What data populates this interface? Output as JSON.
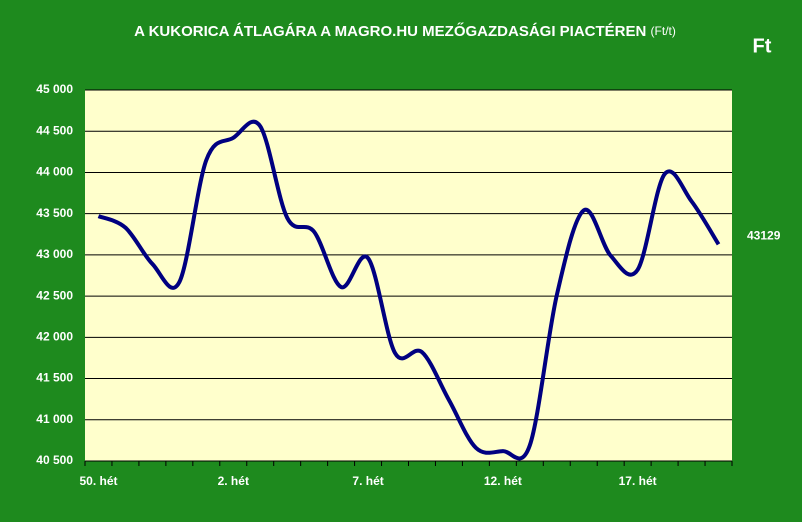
{
  "chart_data": {
    "type": "line",
    "title": "A KUKORICA ÁTLAGÁRA A MAGRO.HU MEZŐGAZDASÁGI PIACTÉREN",
    "title_unit": "(Ft/t)",
    "unit_label": "Ft",
    "categories": [
      "50. hét",
      null,
      null,
      null,
      null,
      "2. hét",
      null,
      null,
      null,
      null,
      "7. hét",
      null,
      null,
      null,
      null,
      "12. hét",
      null,
      null,
      null,
      null,
      "17. hét",
      null,
      null,
      null
    ],
    "series": [
      {
        "color": "#000080",
        "values": [
          43470,
          43330,
          42890,
          42670,
          44150,
          44420,
          44560,
          43450,
          43280,
          42610,
          42960,
          41810,
          41820,
          41240,
          40660,
          40620,
          40690,
          42510,
          43540,
          42990,
          42820,
          43980,
          43650,
          43129
        ]
      }
    ],
    "ylim": [
      40500,
      45000
    ],
    "yticks": [
      {
        "value": 40500,
        "label": "40 500"
      },
      {
        "value": 41000,
        "label": "41 000"
      },
      {
        "value": 41500,
        "label": "41 500"
      },
      {
        "value": 42000,
        "label": "42 000"
      },
      {
        "value": 42500,
        "label": "42 500"
      },
      {
        "value": 43000,
        "label": "43 000"
      },
      {
        "value": 43500,
        "label": "43 500"
      },
      {
        "value": 44000,
        "label": "44 000"
      },
      {
        "value": 44500,
        "label": "44 500"
      },
      {
        "value": 45000,
        "label": "45 000"
      }
    ],
    "grid": true,
    "background": "#1e8a1e",
    "plot_background": "#ffffcc"
  }
}
